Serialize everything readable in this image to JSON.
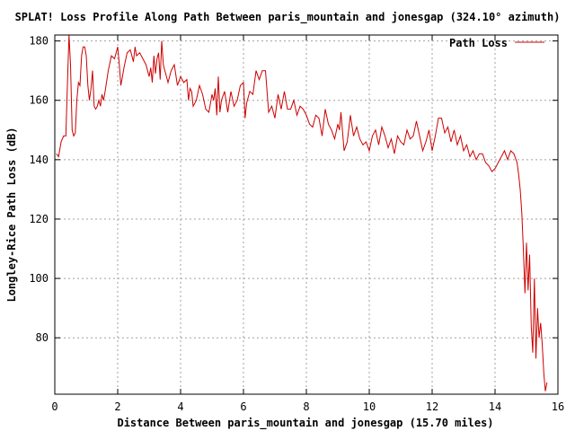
{
  "chart_data": {
    "type": "line",
    "title": "SPLAT! Loss Profile Along Path Between paris_mountain and jonesgap (324.10° azimuth)",
    "xlabel": "Distance Between paris_mountain and jonesgap (15.70 miles)",
    "ylabel": "Longley-Rice Path Loss (dB)",
    "xlim": [
      0,
      16
    ],
    "ylim": [
      61,
      182
    ],
    "x_ticks": [
      0,
      2,
      4,
      6,
      8,
      10,
      12,
      14,
      16
    ],
    "y_ticks": [
      80,
      100,
      120,
      140,
      160,
      180
    ],
    "x_tick_labels": [
      "0",
      "2",
      "4",
      "6",
      "8",
      "10",
      "12",
      "14",
      "16"
    ],
    "y_tick_labels": [
      "80",
      "100",
      "120",
      "140",
      "160",
      "180"
    ],
    "grid": true,
    "legend_position": "top-right",
    "series": [
      {
        "name": "Path Loss",
        "color": "#cc0000",
        "x": [
          0.05,
          0.12,
          0.2,
          0.28,
          0.35,
          0.4,
          0.45,
          0.5,
          0.55,
          0.6,
          0.65,
          0.7,
          0.75,
          0.8,
          0.85,
          0.9,
          0.95,
          1.0,
          1.05,
          1.1,
          1.15,
          1.2,
          1.25,
          1.3,
          1.35,
          1.4,
          1.45,
          1.5,
          1.55,
          1.6,
          1.7,
          1.8,
          1.9,
          2.0,
          2.05,
          2.1,
          2.15,
          2.2,
          2.3,
          2.4,
          2.45,
          2.5,
          2.55,
          2.6,
          2.7,
          2.8,
          2.9,
          3.0,
          3.05,
          3.1,
          3.15,
          3.2,
          3.25,
          3.3,
          3.35,
          3.4,
          3.45,
          3.5,
          3.55,
          3.6,
          3.7,
          3.8,
          3.9,
          4.0,
          4.1,
          4.2,
          4.25,
          4.3,
          4.35,
          4.4,
          4.5,
          4.6,
          4.7,
          4.8,
          4.9,
          5.0,
          5.05,
          5.1,
          5.15,
          5.2,
          5.25,
          5.3,
          5.4,
          5.5,
          5.6,
          5.7,
          5.8,
          5.9,
          6.0,
          6.05,
          6.1,
          6.2,
          6.3,
          6.4,
          6.5,
          6.6,
          6.7,
          6.8,
          6.9,
          7.0,
          7.1,
          7.2,
          7.3,
          7.4,
          7.5,
          7.6,
          7.7,
          7.8,
          7.9,
          8.0,
          8.1,
          8.2,
          8.3,
          8.4,
          8.5,
          8.6,
          8.7,
          8.8,
          8.9,
          9.0,
          9.05,
          9.1,
          9.2,
          9.3,
          9.4,
          9.5,
          9.6,
          9.7,
          9.8,
          9.9,
          10.0,
          10.1,
          10.2,
          10.3,
          10.4,
          10.5,
          10.6,
          10.7,
          10.8,
          10.9,
          11.0,
          11.1,
          11.2,
          11.3,
          11.4,
          11.5,
          11.6,
          11.7,
          11.8,
          11.9,
          12.0,
          12.1,
          12.2,
          12.3,
          12.4,
          12.5,
          12.6,
          12.7,
          12.8,
          12.9,
          13.0,
          13.1,
          13.2,
          13.3,
          13.4,
          13.5,
          13.6,
          13.7,
          13.8,
          13.9,
          14.0,
          14.1,
          14.2,
          14.3,
          14.4,
          14.5,
          14.6,
          14.7,
          14.75,
          14.8,
          14.85,
          14.9,
          14.95,
          15.0,
          15.05,
          15.1,
          15.15,
          15.2,
          15.25,
          15.3,
          15.35,
          15.4,
          15.45,
          15.5,
          15.55,
          15.6,
          15.65
        ],
        "values": [
          142,
          141,
          146,
          148,
          148,
          165,
          182,
          172,
          150,
          148,
          149,
          160,
          166,
          165,
          175,
          178,
          178,
          175,
          165,
          160,
          164,
          170,
          158,
          157,
          158,
          160,
          158,
          162,
          160,
          163,
          170,
          175,
          174,
          178,
          172,
          165,
          168,
          171,
          176,
          177,
          175,
          173,
          178,
          175,
          176,
          174,
          172,
          168,
          171,
          166,
          175,
          169,
          174,
          176,
          167,
          180,
          172,
          170,
          168,
          166,
          170,
          172,
          165,
          168,
          166,
          167,
          160,
          164,
          163,
          158,
          160,
          165,
          162,
          157,
          156,
          162,
          160,
          164,
          155,
          168,
          156,
          160,
          163,
          156,
          163,
          158,
          160,
          165,
          166,
          154,
          159,
          163,
          162,
          170,
          167,
          170,
          170,
          156,
          158,
          154,
          162,
          157,
          163,
          157,
          157,
          160,
          155,
          158,
          157,
          155,
          152,
          151,
          155,
          154,
          148,
          157,
          152,
          150,
          147,
          152,
          150,
          156,
          143,
          146,
          155,
          148,
          151,
          147,
          145,
          146,
          143,
          148,
          150,
          145,
          151,
          148,
          144,
          147,
          142,
          148,
          146,
          145,
          150,
          147,
          148,
          153,
          148,
          143,
          146,
          150,
          143,
          148,
          154,
          154,
          149,
          151,
          146,
          150,
          145,
          148,
          143,
          145,
          141,
          143,
          140,
          142,
          142,
          139,
          138,
          136,
          137,
          139,
          141,
          143,
          140,
          143,
          142,
          139,
          135,
          130,
          122,
          110,
          95,
          112,
          96,
          108,
          84,
          75,
          100,
          73,
          90,
          80,
          85,
          78,
          68,
          62,
          65
        ]
      }
    ]
  }
}
